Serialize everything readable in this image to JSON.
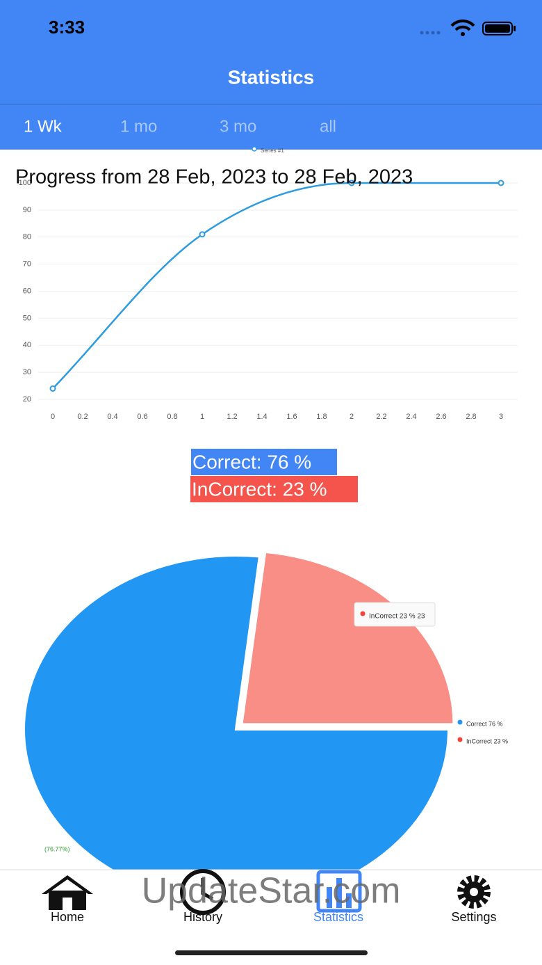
{
  "status_bar": {
    "time": "3:33"
  },
  "header": {
    "title": "Statistics"
  },
  "tabs": [
    "1 Wk",
    "1 mo",
    "3 mo",
    "all"
  ],
  "chart_data": [
    {
      "type": "line",
      "title": "Progress from 28 Feb, 2023 to 28 Feb, 2023",
      "x": [
        0,
        1,
        2,
        3
      ],
      "series": [
        {
          "name": "Series #1",
          "color": "#2d9be0",
          "values": [
            24,
            81,
            100,
            100
          ]
        }
      ],
      "xlim": [
        0,
        3
      ],
      "xticks": [
        0,
        0.2,
        0.4,
        0.6,
        0.8,
        1,
        1.2,
        1.4,
        1.6,
        1.8,
        2,
        2.2,
        2.4,
        2.6,
        2.8,
        3
      ],
      "ylim": [
        20,
        100
      ],
      "yticks": [
        20,
        30,
        40,
        50,
        60,
        70,
        80,
        90,
        100
      ],
      "grid": true
    },
    {
      "type": "pie",
      "categories": [
        "Correct 76 %",
        "InCorrect 23 %"
      ],
      "values": [
        76,
        23
      ],
      "colors": [
        "#2196f3",
        "#f88e86"
      ],
      "legend_colors": [
        "#2196f3",
        "#f44336"
      ],
      "annotation": "(76.77%)",
      "tooltip": "InCorrect 23 % 23"
    }
  ],
  "summary": [
    "Correct: 76 %",
    "InCorrect: 23 %"
  ],
  "nav": [
    "Home",
    "History",
    "Statistics",
    "Settings"
  ],
  "watermark": "UpdateStar.com"
}
